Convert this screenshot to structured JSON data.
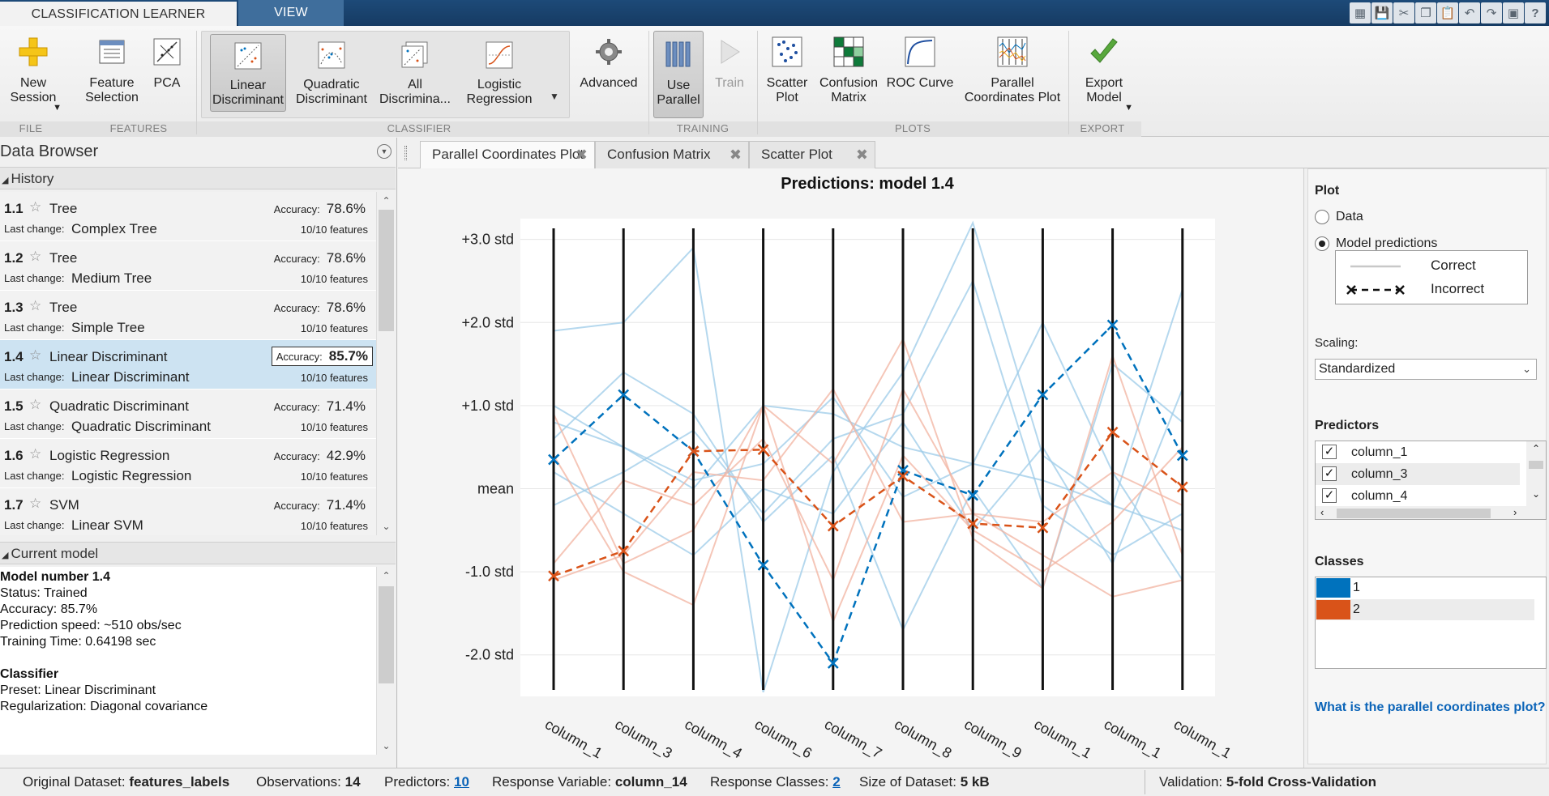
{
  "toolstrip_tabs": {
    "classification_learner": "CLASSIFICATION LEARNER",
    "view": "VIEW"
  },
  "quick_access": [
    "layout-icon",
    "save-icon",
    "cut-icon",
    "copy-icon",
    "paste-icon",
    "undo-icon",
    "redo-icon",
    "window-icon",
    "help-icon"
  ],
  "ribbon": {
    "new_session": "New\nSession",
    "feature_selection": "Feature\nSelection",
    "pca": "PCA",
    "linear_discriminant": "Linear\nDiscriminant",
    "quadratic_discriminant": "Quadratic\nDiscriminant",
    "all_discriminants": "All\nDiscrimina...",
    "logistic_regression": "Logistic\nRegression",
    "advanced": "Advanced",
    "use_parallel": "Use\nParallel",
    "train": "Train",
    "scatter_plot": "Scatter\nPlot",
    "confusion_matrix": "Confusion\nMatrix",
    "roc_curve": "ROC Curve",
    "parallel_coordinates_plot": "Parallel\nCoordinates Plot",
    "export_model": "Export\nModel",
    "sections": {
      "file": "FILE",
      "features": "FEATURES",
      "classifier": "CLASSIFIER",
      "training": "TRAINING",
      "plots": "PLOTS",
      "export": "EXPORT"
    }
  },
  "data_browser": {
    "title": "Data Browser",
    "history_label": "History",
    "current_model_label": "Current model",
    "accuracy_label": "Accuracy:",
    "last_change_label": "Last change:",
    "history": [
      {
        "num": "1.1",
        "name": "Tree",
        "accuracy": "78.6%",
        "last_change": "Complex Tree",
        "features": "10/10 features"
      },
      {
        "num": "1.2",
        "name": "Tree",
        "accuracy": "78.6%",
        "last_change": "Medium Tree",
        "features": "10/10 features"
      },
      {
        "num": "1.3",
        "name": "Tree",
        "accuracy": "78.6%",
        "last_change": "Simple Tree",
        "features": "10/10 features"
      },
      {
        "num": "1.4",
        "name": "Linear Discriminant",
        "accuracy": "85.7%",
        "last_change": "Linear Discriminant",
        "features": "10/10 features"
      },
      {
        "num": "1.5",
        "name": "Quadratic Discriminant",
        "accuracy": "71.4%",
        "last_change": "Quadratic Discriminant",
        "features": "10/10 features"
      },
      {
        "num": "1.6",
        "name": "Logistic Regression",
        "accuracy": "42.9%",
        "last_change": "Logistic Regression",
        "features": "10/10 features"
      },
      {
        "num": "1.7",
        "name": "SVM",
        "accuracy": "71.4%",
        "last_change": "Linear SVM",
        "features": "10/10 features"
      }
    ],
    "current_model": [
      "Model number 1.4",
      "Status: Trained",
      "Accuracy: 85.7%",
      "Prediction speed: ~510 obs/sec",
      "Training Time: 0.64198 sec",
      "",
      "Classifier",
      "Preset: Linear Discriminant",
      "Regularization: Diagonal covariance"
    ]
  },
  "doc_tabs": [
    "Parallel Coordinates Plot",
    "Confusion Matrix",
    "Scatter Plot"
  ],
  "right_panel": {
    "plot_heading": "Plot",
    "option_data": "Data",
    "option_model_predictions": "Model predictions",
    "legend_correct": "Correct",
    "legend_incorrect": "Incorrect",
    "scaling_label": "Scaling:",
    "scaling_value": "Standardized",
    "predictors_heading": "Predictors",
    "predictors": [
      "column_1",
      "column_3",
      "column_4"
    ],
    "classes_heading": "Classes",
    "classes": [
      {
        "name": "1",
        "color": "#0072bd"
      },
      {
        "name": "2",
        "color": "#d95319"
      }
    ],
    "help_link": "What is the parallel coordinates plot?"
  },
  "status_bar": {
    "original_dataset_label": "Original Dataset:",
    "original_dataset": "features_labels",
    "observations_label": "Observations:",
    "observations": "14",
    "predictors_label": "Predictors:",
    "predictors": "10",
    "response_variable_label": "Response Variable:",
    "response_variable": "column_14",
    "response_classes_label": "Response Classes:",
    "response_classes": "2",
    "size_label": "Size of Dataset:",
    "size": "5 kB",
    "validation_label": "Validation:",
    "validation": "5-fold Cross-Validation"
  },
  "chart_data": {
    "type": "line",
    "title": "Predictions: model 1.4",
    "ytick_labels": [
      "+3.0 std",
      "+2.0 std",
      "+1.0 std",
      "mean",
      "-1.0 std",
      "-2.0 std"
    ],
    "yticks": [
      3,
      2,
      1,
      0,
      -1,
      -2
    ],
    "ylim": [
      -2.5,
      3.25
    ],
    "categories": [
      "column_1",
      "column_3",
      "column_4",
      "column_6",
      "column_7",
      "column_8",
      "column_9",
      "column_1",
      "column_1",
      "column_1"
    ],
    "colors": {
      "class_1": "#0072bd",
      "class_2": "#d95319",
      "faint_1": "#9ccbe8",
      "faint_2": "#f2b3a0"
    },
    "incorrect": [
      {
        "class": "1",
        "values": [
          0.35,
          1.13,
          0.45,
          -0.92,
          -2.1,
          0.22,
          -0.08,
          1.13,
          1.97,
          0.4
        ]
      },
      {
        "class": "2",
        "values": [
          -1.05,
          -0.75,
          0.45,
          0.47,
          -0.45,
          0.15,
          -0.42,
          -0.47,
          0.68,
          0.02
        ]
      }
    ],
    "correct": [
      {
        "class": "1",
        "values": [
          1.9,
          2.0,
          2.9,
          -2.45,
          0.2,
          1.4,
          3.2,
          0.4,
          -0.2,
          2.4
        ]
      },
      {
        "class": "1",
        "values": [
          1.0,
          0.5,
          0.1,
          0.3,
          1.1,
          -0.1,
          0.3,
          2.0,
          0.2,
          -1.1
        ]
      },
      {
        "class": "1",
        "values": [
          0.6,
          1.4,
          0.9,
          -0.4,
          0.4,
          -1.7,
          0.0,
          -1.2,
          1.5,
          0.8
        ]
      },
      {
        "class": "1",
        "values": [
          0.2,
          -0.3,
          -0.8,
          0.0,
          -0.3,
          0.8,
          -0.5,
          0.5,
          -0.9,
          1.2
        ]
      },
      {
        "class": "1",
        "values": [
          0.8,
          0.5,
          0.0,
          1.0,
          0.9,
          0.5,
          0.3,
          0.1,
          -0.2,
          -0.5
        ]
      },
      {
        "class": "1",
        "values": [
          -0.2,
          0.2,
          0.7,
          -0.3,
          0.6,
          0.9,
          2.5,
          -0.2,
          -0.8,
          -0.3
        ]
      },
      {
        "class": "2",
        "values": [
          0.9,
          -0.9,
          -0.5,
          1.0,
          0.3,
          1.8,
          -0.6,
          -1.2,
          1.6,
          -0.8
        ]
      },
      {
        "class": "2",
        "values": [
          -1.1,
          -0.8,
          0.2,
          0.1,
          1.2,
          -0.4,
          -0.3,
          -0.8,
          -1.3,
          -1.1
        ]
      },
      {
        "class": "2",
        "values": [
          0.4,
          -1.0,
          -1.4,
          1.0,
          -1.6,
          0.4,
          -0.5,
          -1.0,
          -0.4,
          0.5
        ]
      },
      {
        "class": "2",
        "values": [
          -0.9,
          0.1,
          -0.2,
          0.6,
          -1.1,
          1.2,
          -0.3,
          -0.4,
          0.2,
          -0.2
        ]
      }
    ]
  }
}
